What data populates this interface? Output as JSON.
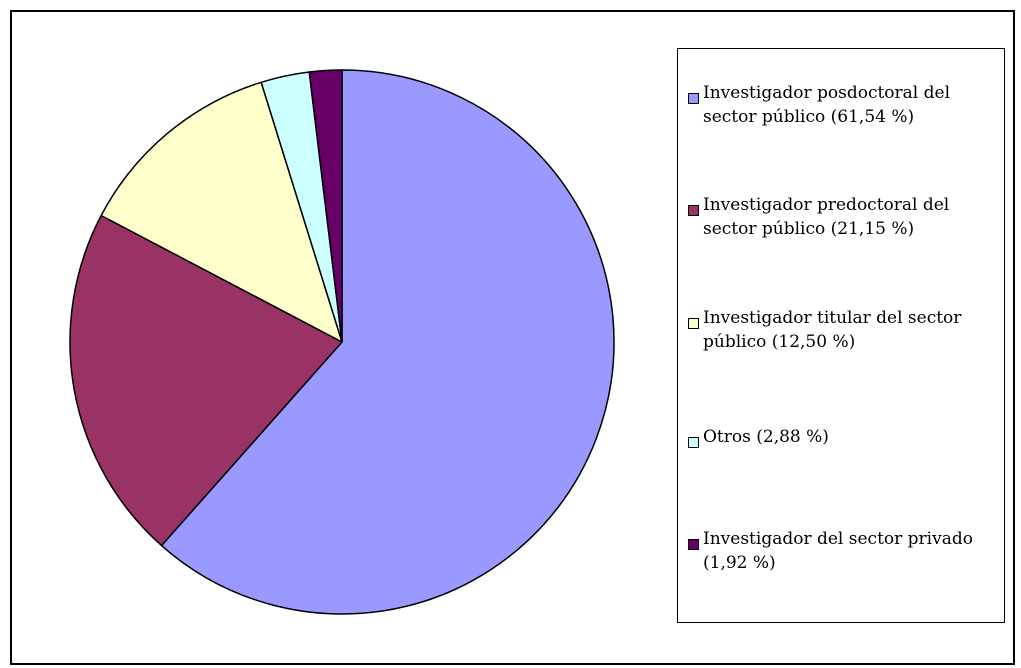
{
  "chart_data": {
    "type": "pie",
    "title": "",
    "slices": [
      {
        "label": "Investigador posdoctoral del sector público (61,54 %)",
        "value": 61.54,
        "color": "#9999ff"
      },
      {
        "label": "Investigador predoctoral del sector público (21,15 %)",
        "value": 21.15,
        "color": "#993366"
      },
      {
        "label": "Investigador titular del sector público (12,50 %)",
        "value": 12.5,
        "color": "#ffffcc"
      },
      {
        "label": "Otros (2,88 %)",
        "value": 2.88,
        "color": "#ccffff"
      },
      {
        "label": "Investigador del sector privado (1,92 %)",
        "value": 1.92,
        "color": "#660066"
      }
    ],
    "start_angle": "12 o'clock",
    "direction": "clockwise",
    "legend_position": "right"
  }
}
